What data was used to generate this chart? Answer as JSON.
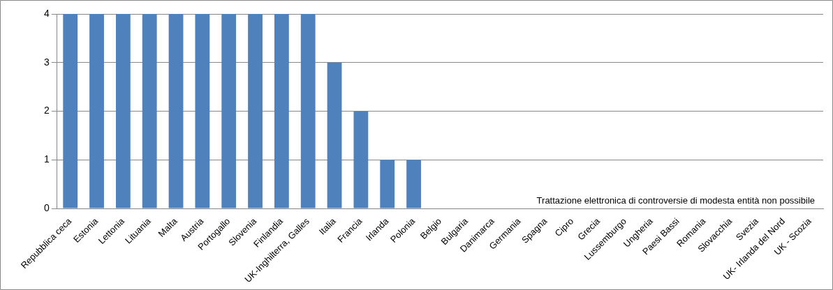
{
  "chart_data": {
    "type": "bar",
    "categories": [
      "Repubblica ceca",
      "Estonia",
      "Lettonia",
      "Lituania",
      "Malta",
      "Austria",
      "Portogallo",
      "Slovenia",
      "Finlandia",
      "UK-Inghilterra, Galles",
      "Italia",
      "Francia",
      "Irlanda",
      "Polonia",
      "Belgio",
      "Bulgaria",
      "Danimarca",
      "Germania",
      "Spagna",
      "Cipro",
      "Grecia",
      "Lussemburgo",
      "Ungheria",
      "Paesi Bassi",
      "Romania",
      "Slovacchia",
      "Svezia",
      "UK- Irlanda del Nord",
      "UK - Scozia"
    ],
    "values": [
      4,
      4,
      4,
      4,
      4,
      4,
      4,
      4,
      4,
      4,
      3,
      2,
      1,
      1,
      0,
      0,
      0,
      0,
      0,
      0,
      0,
      0,
      0,
      0,
      0,
      0,
      0,
      0,
      0
    ],
    "color": "#4f81bd",
    "ylim": [
      0,
      4
    ],
    "yticks": [
      0,
      1,
      2,
      3,
      4
    ],
    "grid": "y",
    "legend": false,
    "annotations": [
      "Trattazione elettronica di controversie di modesta entità non possibile"
    ]
  }
}
